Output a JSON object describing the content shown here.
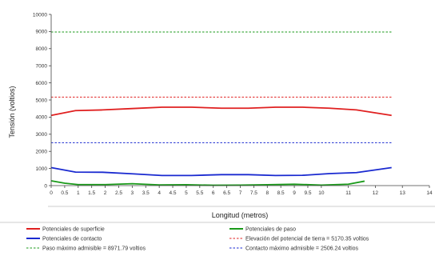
{
  "chart_data": {
    "type": "line",
    "xlabel": "Longitud (metros)",
    "ylabel": "Tensión (voltios)",
    "xlim": [
      0,
      14
    ],
    "ylim": [
      0,
      10000
    ],
    "grid": false,
    "legend_position": "bottom",
    "x_ticks": [
      "0",
      "0.5",
      "1",
      "1.5",
      "2",
      "2.5",
      "3",
      "3.5",
      "4",
      "4.5",
      "5",
      "5.5",
      "6",
      "6.5",
      "7",
      "7.5",
      "8",
      "8.5",
      "9",
      "9.5",
      "10",
      "11",
      "12",
      "13",
      "14"
    ],
    "x_tick_values": [
      0,
      0.5,
      1,
      1.5,
      2,
      2.5,
      3,
      3.5,
      4,
      4.5,
      5,
      5.5,
      6,
      6.5,
      7,
      7.5,
      8,
      8.5,
      9,
      9.5,
      10,
      11,
      12,
      13,
      14
    ],
    "y_ticks": [
      "0",
      "1000",
      "2000",
      "3000",
      "4000",
      "5000",
      "6000",
      "7000",
      "8000",
      "9000",
      "10000"
    ],
    "y_tick_values": [
      0,
      1000,
      2000,
      3000,
      4000,
      5000,
      6000,
      7000,
      8000,
      9000,
      10000
    ],
    "series": [
      {
        "name": "Potenciales de superficie",
        "color": "#e02020",
        "style": "solid",
        "x": [
          0,
          0.9,
          1.9,
          3.0,
          4.1,
          5.2,
          6.3,
          7.3,
          8.3,
          9.3,
          10.3,
          11.3,
          12.6
        ],
        "y": [
          4100,
          4380,
          4420,
          4500,
          4580,
          4580,
          4520,
          4520,
          4580,
          4580,
          4520,
          4420,
          4100
        ]
      },
      {
        "name": "Potenciales de paso",
        "color": "#1a9a1a",
        "style": "solid",
        "x": [
          0,
          0.5,
          1.0,
          2.0,
          3.0,
          4.0,
          5.0,
          6.0,
          7.0,
          8.0,
          9.0,
          10.0,
          11.0,
          11.6
        ],
        "y": [
          280,
          140,
          60,
          60,
          110,
          40,
          50,
          20,
          30,
          50,
          80,
          30,
          80,
          260
        ]
      },
      {
        "name": "Potenciales de contacto",
        "color": "#1a2ad0",
        "style": "solid",
        "x": [
          0,
          0.9,
          1.9,
          3.0,
          4.1,
          5.2,
          6.3,
          7.3,
          8.3,
          9.3,
          10.3,
          11.3,
          12.6
        ],
        "y": [
          1050,
          790,
          780,
          690,
          590,
          590,
          640,
          640,
          590,
          600,
          700,
          760,
          1050
        ]
      },
      {
        "name": "Elevación del potencial de tierra = 5170.35 voltios",
        "color": "#e02020",
        "style": "dashed",
        "x": [
          0,
          12.6
        ],
        "y": [
          5170.35,
          5170.35
        ]
      },
      {
        "name": "Paso máximo admisible = 8971.79 voltios",
        "color": "#1a9a1a",
        "style": "dashed",
        "x": [
          0,
          12.6
        ],
        "y": [
          8971.79,
          8971.79
        ]
      },
      {
        "name": "Contacto máximo admisible = 2506.24 voltios",
        "color": "#1a2ad0",
        "style": "dashed",
        "x": [
          0,
          12.6
        ],
        "y": [
          2506.24,
          2506.24
        ]
      }
    ],
    "legend": [
      {
        "label": "Potenciales de superficie",
        "color": "#e02020",
        "style": "solid"
      },
      {
        "label": "Potenciales de paso",
        "color": "#1a9a1a",
        "style": "solid"
      },
      {
        "label": "Potenciales de contacto",
        "color": "#1a2ad0",
        "style": "solid"
      },
      {
        "label": "Elevación del potencial de tierra = 5170.35 voltios",
        "color": "#e02020",
        "style": "dashed"
      },
      {
        "label": "Paso máximo admisible = 8971.79 voltios",
        "color": "#1a9a1a",
        "style": "dashed"
      },
      {
        "label": "Contacto máximo admisible = 2506.24 voltios",
        "color": "#1a2ad0",
        "style": "dashed"
      }
    ]
  }
}
